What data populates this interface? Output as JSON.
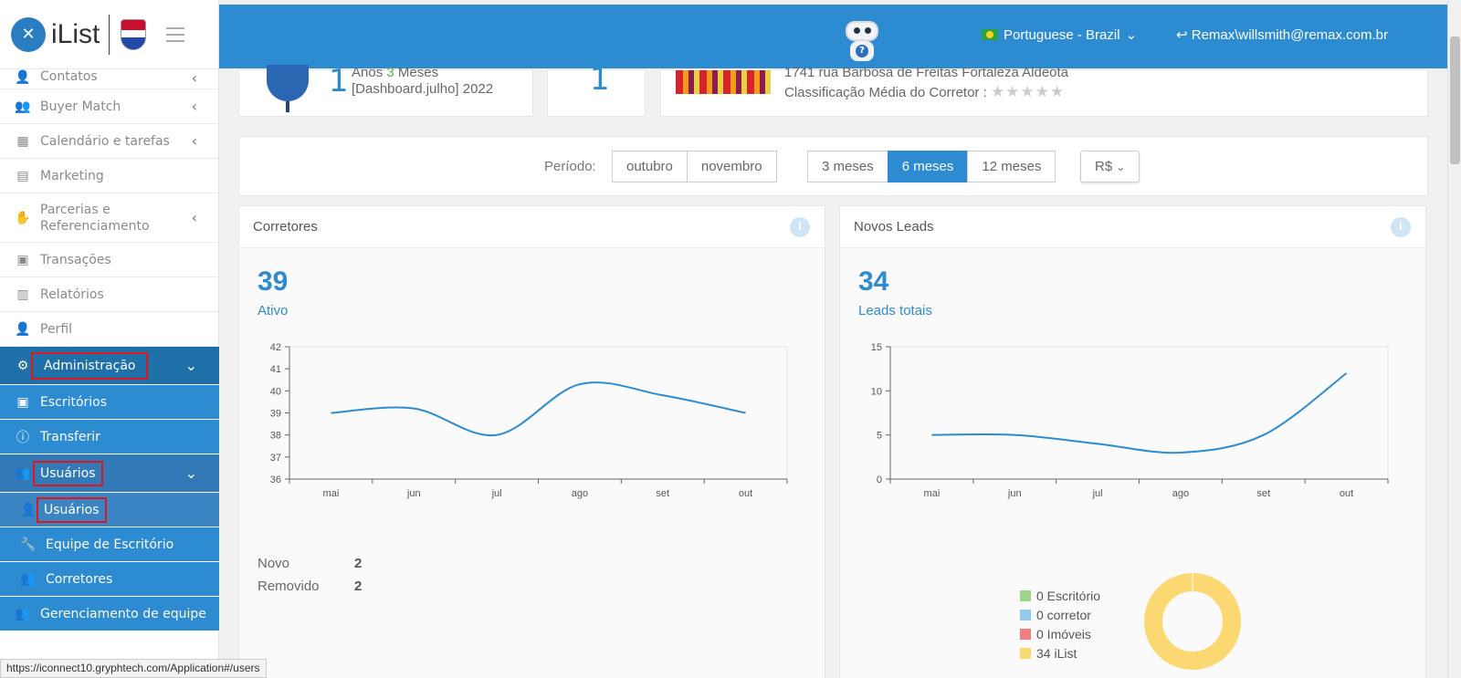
{
  "brand": {
    "name": "iList"
  },
  "sidebar": {
    "items": [
      {
        "label": "Contatos",
        "icon": "contacts-icon",
        "chevron": "‹"
      },
      {
        "label": "Buyer Match",
        "icon": "user-match-icon",
        "chevron": "‹"
      },
      {
        "label": "Calendário e tarefas",
        "icon": "calendar-icon",
        "chevron": "‹"
      },
      {
        "label": "Marketing",
        "icon": "book-icon"
      },
      {
        "label": "Parcerias e Referenciamento",
        "icon": "handshake-icon",
        "chevron": "‹"
      },
      {
        "label": "Transações",
        "icon": "briefcase-icon"
      },
      {
        "label": "Relatórios",
        "icon": "bar-chart-icon"
      },
      {
        "label": "Perfil",
        "icon": "user-icon"
      },
      {
        "label": "Administração",
        "icon": "gear-icon",
        "chevron": "⌄"
      },
      {
        "label": "Escritórios",
        "icon": "office-icon"
      },
      {
        "label": "Transferir",
        "icon": "info-icon"
      },
      {
        "label": "Usuários",
        "icon": "users-icon",
        "chevron": "⌄"
      },
      {
        "label": "Usuários",
        "icon": "user-icon"
      },
      {
        "label": "Equipe de Escritório",
        "icon": "wrench-icon"
      },
      {
        "label": "Corretores",
        "icon": "agents-icon"
      },
      {
        "label": "Gerenciamento de equipe",
        "icon": "team-icon"
      }
    ]
  },
  "header": {
    "language": "Portuguese - Brazil",
    "user": "Remax\\willsmith@remax.com.br"
  },
  "summary": {
    "card1_line1_a": "Anos",
    "card1_line1_num": "3",
    "card1_line1_b": "Meses",
    "card1_line2": "[Dashboard.julho] 2022",
    "card1_big": "1",
    "card2_big": "1",
    "address": "1741 rua Barbosa de Freitas Fortaleza Aldeota",
    "rating_label": "Classificação Média do Corretor :",
    "rating_stars": "★★★★★"
  },
  "period": {
    "label": "Período:",
    "months": [
      "outubro",
      "novembro"
    ],
    "ranges": [
      "3 meses",
      "6 meses",
      "12 meses"
    ],
    "active_range": "6 meses",
    "currency": "R$"
  },
  "panels": {
    "corretores": {
      "title": "Corretores",
      "kpi": "39",
      "kpi_label": "Ativo",
      "stats": [
        {
          "label": "Novo",
          "value": "2"
        },
        {
          "label": "Removido",
          "value": "2"
        }
      ]
    },
    "leads": {
      "title": "Novos Leads",
      "kpi": "34",
      "kpi_label": "Leads totais",
      "legend": [
        {
          "label": "0 Escritório",
          "color": "#9dd58a"
        },
        {
          "label": "0 corretor",
          "color": "#93c9ea"
        },
        {
          "label": "0 Imóveis",
          "color": "#f08080"
        },
        {
          "label": "34 iList",
          "color": "#fbd872"
        }
      ]
    }
  },
  "status_url": "https://iconnect10.gryphtech.com/Application#/users",
  "chart_data": [
    {
      "type": "line",
      "x": [
        "mai",
        "jun",
        "jul",
        "ago",
        "set",
        "out"
      ],
      "series": [
        {
          "values": [
            39,
            39.2,
            38,
            40.3,
            39.8,
            39
          ]
        }
      ],
      "ylim": [
        36,
        42
      ],
      "yticks": [
        36,
        37,
        38,
        39,
        40,
        41,
        42
      ],
      "grid": false,
      "color": "#2b8ccf"
    },
    {
      "type": "line",
      "x": [
        "mai",
        "jun",
        "jul",
        "ago",
        "set",
        "out"
      ],
      "series": [
        {
          "values": [
            5,
            5,
            4,
            3,
            5,
            12
          ]
        }
      ],
      "ylim": [
        0,
        15
      ],
      "yticks": [
        0,
        5,
        10,
        15
      ],
      "grid": false,
      "color": "#2b8ccf"
    },
    {
      "type": "pie",
      "categories": [
        "Escritório",
        "corretor",
        "Imóveis",
        "iList"
      ],
      "values": [
        0,
        0,
        0,
        34
      ],
      "colors": [
        "#9dd58a",
        "#93c9ea",
        "#f08080",
        "#fbd872"
      ]
    }
  ]
}
